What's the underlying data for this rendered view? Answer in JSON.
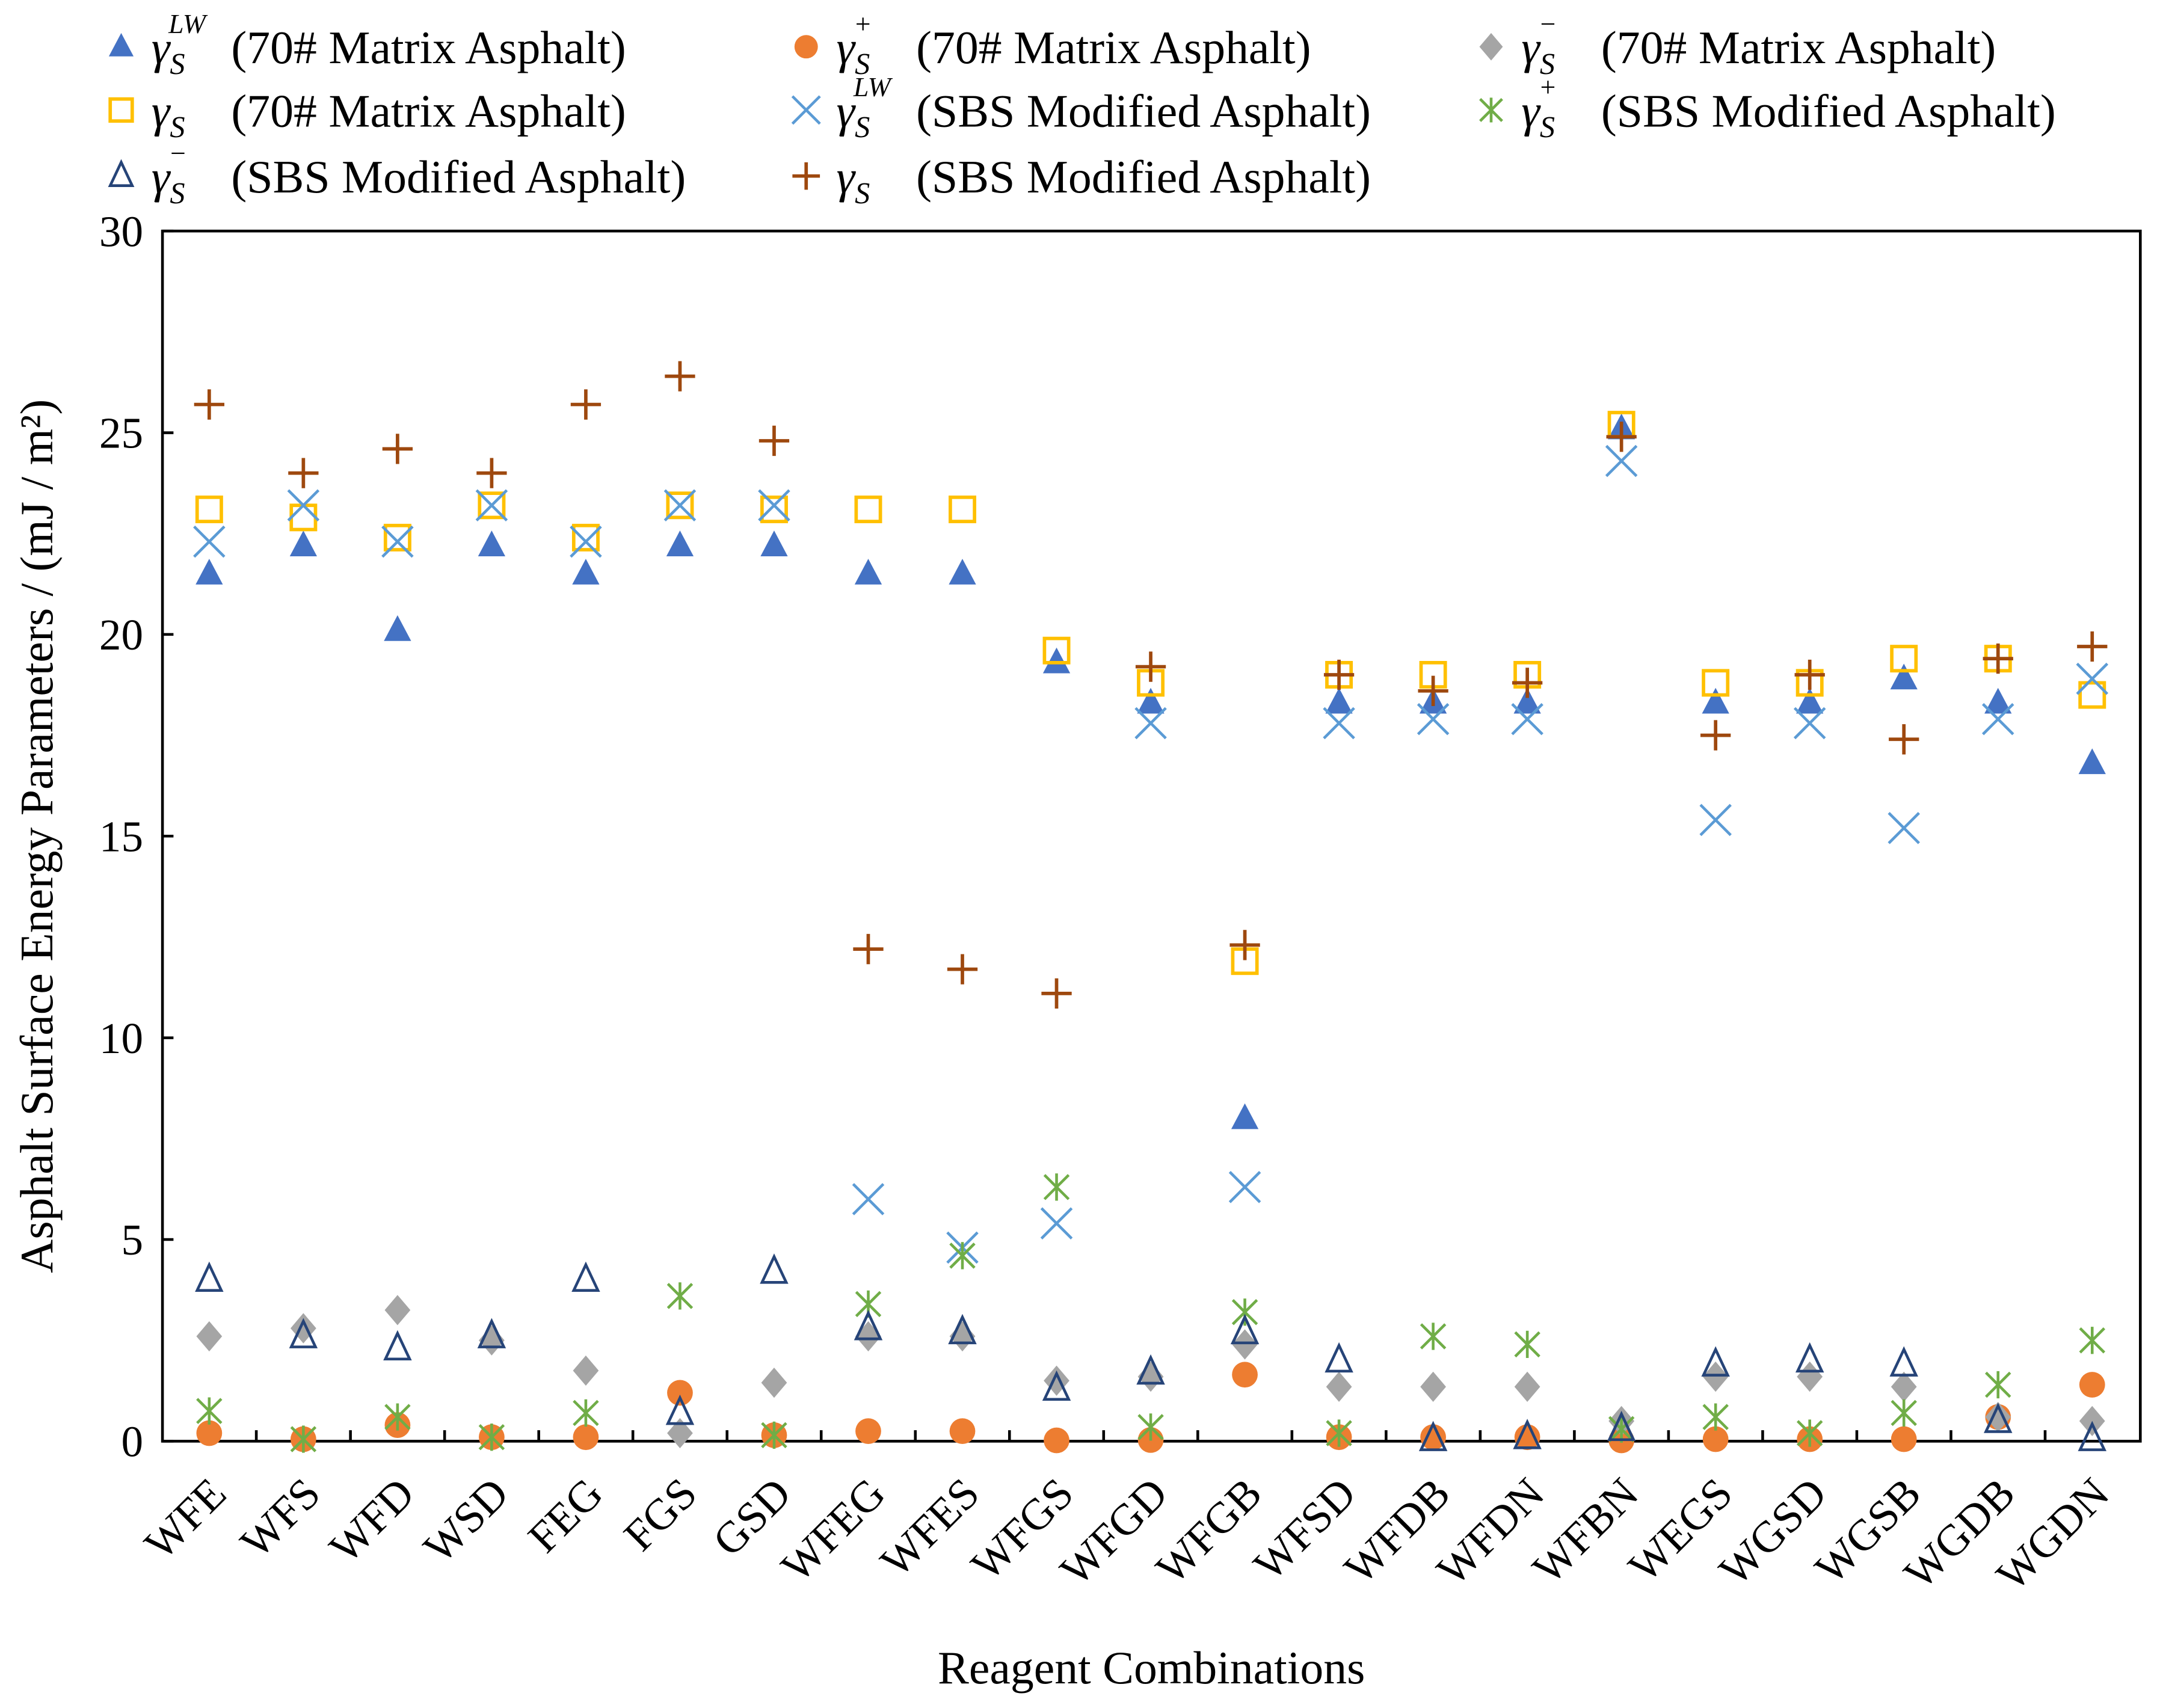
{
  "chart_data": {
    "type": "scatter",
    "title": "",
    "xlabel": "Reagent Combinations",
    "ylabel": "Asphalt Surface Energy Parameters / (mJ / m²)",
    "ylim": [
      0,
      30
    ],
    "yticks": [
      "0",
      "5",
      "10",
      "15",
      "20",
      "25",
      "30"
    ],
    "ytick_values": [
      0,
      5,
      10,
      15,
      20,
      25,
      30
    ],
    "grid": false,
    "legend_placement": "top",
    "categories": [
      "WFE",
      "WFS",
      "WFD",
      "WSD",
      "FEG",
      "FGS",
      "GSD",
      "WFEG",
      "WFES",
      "WFGS",
      "WFGD",
      "WFGB",
      "WFSD",
      "WFDB",
      "WFDN",
      "WFBN",
      "WEGS",
      "WGSD",
      "WGSB",
      "WGDB",
      "WGDN"
    ],
    "series": [
      {
        "name": "γS LW (70# Matrix Asphalt)",
        "symbol": "γ",
        "sub": "S",
        "sup": "LW",
        "label": "(70# Matrix Asphalt)",
        "marker": "triangle-filled",
        "color": "#4472C4",
        "values": [
          21.5,
          22.2,
          20.1,
          22.2,
          21.5,
          22.2,
          22.2,
          21.5,
          21.5,
          19.3,
          18.3,
          8.0,
          18.3,
          18.3,
          18.3,
          25.1,
          18.3,
          18.3,
          18.9,
          18.3,
          16.8
        ]
      },
      {
        "name": "γS + (70# Matrix Asphalt)",
        "symbol": "γ",
        "sub": "S",
        "sup": "+",
        "label": "(70# Matrix Asphalt)",
        "marker": "circle",
        "color": "#ED7D31",
        "values": [
          0.2,
          0.05,
          0.4,
          0.1,
          0.1,
          1.2,
          0.15,
          0.25,
          0.25,
          0.02,
          0.03,
          1.65,
          0.1,
          0.1,
          0.1,
          0.02,
          0.05,
          0.05,
          0.05,
          0.6,
          1.4
        ]
      },
      {
        "name": "γS − (70# Matrix Asphalt)",
        "symbol": "γ",
        "sub": "S",
        "sup": "−",
        "label": "(70# Matrix Asphalt)",
        "marker": "diamond",
        "color": "#A5A5A5",
        "values": [
          2.6,
          2.8,
          3.25,
          2.5,
          1.75,
          0.2,
          1.45,
          2.6,
          2.6,
          1.5,
          1.6,
          2.4,
          1.35,
          1.35,
          1.35,
          0.5,
          1.6,
          1.6,
          1.35,
          0.6,
          0.5
        ]
      },
      {
        "name": "γS (70# Matrix Asphalt)",
        "symbol": "γ",
        "sub": "S",
        "sup": "",
        "label": "(70# Matrix Asphalt)",
        "marker": "square-open",
        "color": "#FFC000",
        "values": [
          23.1,
          22.9,
          22.4,
          23.2,
          22.4,
          23.2,
          23.1,
          23.1,
          23.1,
          19.6,
          18.8,
          11.9,
          19.0,
          19.0,
          19.0,
          25.2,
          18.8,
          18.8,
          19.4,
          19.4,
          18.5
        ]
      },
      {
        "name": "γS LW (SBS Modified Asphalt)",
        "symbol": "γ",
        "sub": "S",
        "sup": "LW",
        "label": "(SBS Modified Asphalt)",
        "marker": "x",
        "color": "#5B9BD5",
        "values": [
          22.3,
          23.2,
          22.3,
          23.2,
          22.3,
          23.2,
          23.2,
          6.0,
          4.8,
          5.4,
          17.8,
          6.3,
          17.8,
          17.9,
          17.9,
          24.3,
          15.4,
          17.8,
          15.2,
          17.9,
          18.9
        ]
      },
      {
        "name": "γS + (SBS Modified Asphalt)",
        "symbol": "γ",
        "sub": "S",
        "sup": "+",
        "label": "(SBS Modified Asphalt)",
        "marker": "asterisk",
        "color": "#70AD47",
        "values": [
          0.75,
          0.05,
          0.6,
          0.1,
          0.7,
          3.6,
          0.15,
          3.4,
          4.6,
          6.3,
          0.35,
          3.2,
          0.2,
          2.6,
          2.4,
          0.3,
          0.6,
          0.2,
          0.7,
          1.4,
          2.5
        ]
      },
      {
        "name": "γS − (SBS Modified Asphalt)",
        "symbol": "γ",
        "sub": "S",
        "sup": "−",
        "label": "(SBS Modified Asphalt)",
        "marker": "triangle-open",
        "color": "#264478",
        "values": [
          4.0,
          2.6,
          2.3,
          2.6,
          4.0,
          0.7,
          4.2,
          2.8,
          2.7,
          1.3,
          1.7,
          2.7,
          2.0,
          0.05,
          0.1,
          0.3,
          1.9,
          2.0,
          1.9,
          0.5,
          0.05
        ]
      },
      {
        "name": "γS (SBS Modified Asphalt)",
        "symbol": "γ",
        "sub": "S",
        "sup": "",
        "label": "(SBS Modified Asphalt)",
        "marker": "plus",
        "color": "#9E480E",
        "values": [
          25.7,
          24.0,
          24.6,
          24.0,
          25.7,
          26.4,
          24.8,
          12.2,
          11.7,
          11.1,
          19.2,
          12.3,
          19.0,
          18.6,
          18.8,
          24.9,
          17.5,
          19.0,
          17.4,
          19.4,
          19.7
        ]
      }
    ]
  }
}
